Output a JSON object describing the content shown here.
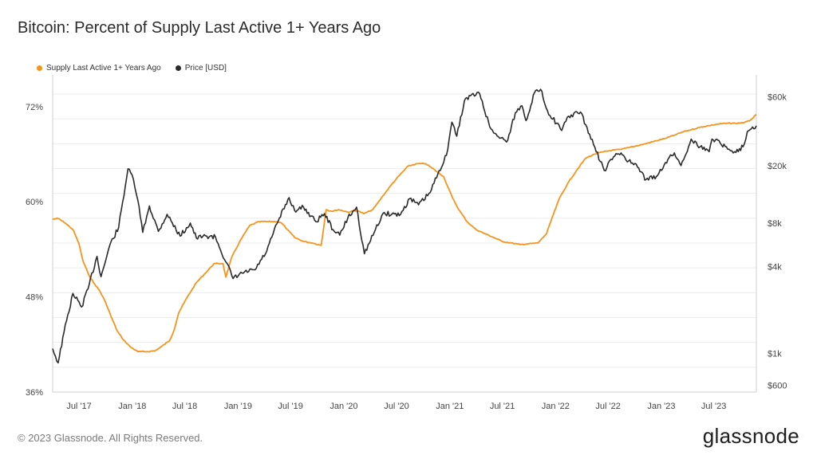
{
  "title": "Bitcoin: Percent of Supply Last Active 1+ Years Ago",
  "legend": [
    {
      "label": "Supply Last Active 1+ Years Ago",
      "color": "#f7931a"
    },
    {
      "label": "Price [USD]",
      "color": "#2a2a2a"
    }
  ],
  "footer": {
    "copyright": "© 2023 Glassnode. All Rights Reserved.",
    "logo": "glassnode"
  },
  "colors": {
    "supply": "#f7931a",
    "price": "#2a2a2a",
    "grid": "#ececec",
    "axis": "#cfcfcf"
  },
  "chart_data": {
    "type": "line",
    "title": "Bitcoin: Percent of Supply Last Active 1+ Years Ago",
    "x_tick_labels": [
      "Jul '17",
      "Jan '18",
      "Jul '18",
      "Jan '19",
      "Jul '19",
      "Jan '20",
      "Jul '20",
      "Jan '21",
      "Jul '21",
      "Jan '22",
      "Jul '22",
      "Jan '23",
      "Jul '23"
    ],
    "x_range": [
      "2017-04-01",
      "2023-11-25"
    ],
    "y_left": {
      "label": "",
      "ticks": [
        "36%",
        "48%",
        "60%",
        "72%"
      ],
      "range": [
        36,
        76
      ]
    },
    "y_right": {
      "label": "",
      "scale": "log",
      "ticks": [
        "$600",
        "$1k",
        "$4k",
        "$8k",
        "$20k",
        "$60k"
      ],
      "range": [
        540,
        85000
      ]
    },
    "grid": true,
    "legend_position": "top-left",
    "series": [
      {
        "name": "Supply Last Active 1+ Years Ago",
        "axis": "left",
        "points": [
          [
            "2017-04-01",
            57.8
          ],
          [
            "2017-04-20",
            57.9
          ],
          [
            "2017-05-15",
            57.3
          ],
          [
            "2017-06-10",
            56.5
          ],
          [
            "2017-06-30",
            54.8
          ],
          [
            "2017-07-15",
            52.5
          ],
          [
            "2017-08-01",
            51.0
          ],
          [
            "2017-08-20",
            49.8
          ],
          [
            "2017-09-10",
            48.8
          ],
          [
            "2017-10-01",
            47.3
          ],
          [
            "2017-10-20",
            45.5
          ],
          [
            "2017-11-10",
            43.7
          ],
          [
            "2017-12-01",
            42.6
          ],
          [
            "2017-12-25",
            41.7
          ],
          [
            "2018-01-20",
            41.1
          ],
          [
            "2018-02-20",
            41.1
          ],
          [
            "2018-03-20",
            41.2
          ],
          [
            "2018-04-10",
            41.7
          ],
          [
            "2018-05-10",
            42.5
          ],
          [
            "2018-05-25",
            43.8
          ],
          [
            "2018-06-10",
            46.0
          ],
          [
            "2018-07-10",
            48.0
          ],
          [
            "2018-08-10",
            49.8
          ],
          [
            "2018-09-10",
            51.0
          ],
          [
            "2018-10-10",
            52.2
          ],
          [
            "2018-11-10",
            52.2
          ],
          [
            "2018-11-20",
            50.5
          ],
          [
            "2018-12-10",
            53.0
          ],
          [
            "2019-01-10",
            55.2
          ],
          [
            "2019-02-10",
            57.0
          ],
          [
            "2019-03-15",
            57.5
          ],
          [
            "2019-04-15",
            57.5
          ],
          [
            "2019-05-15",
            57.5
          ],
          [
            "2019-06-01",
            57.3
          ],
          [
            "2019-06-20",
            56.5
          ],
          [
            "2019-07-15",
            55.5
          ],
          [
            "2019-08-15",
            55.0
          ],
          [
            "2019-09-15",
            54.8
          ],
          [
            "2019-10-15",
            54.5
          ],
          [
            "2019-11-01",
            59.0
          ],
          [
            "2019-11-20",
            58.8
          ],
          [
            "2019-12-15",
            59.0
          ],
          [
            "2020-01-15",
            58.7
          ],
          [
            "2020-02-15",
            58.9
          ],
          [
            "2020-03-10",
            58.5
          ],
          [
            "2020-04-10",
            59.0
          ],
          [
            "2020-05-10",
            60.5
          ],
          [
            "2020-06-10",
            62.0
          ],
          [
            "2020-07-10",
            63.3
          ],
          [
            "2020-08-10",
            64.5
          ],
          [
            "2020-09-10",
            64.8
          ],
          [
            "2020-10-10",
            64.8
          ],
          [
            "2020-11-10",
            64.0
          ],
          [
            "2020-12-10",
            63.2
          ],
          [
            "2021-01-10",
            60.5
          ],
          [
            "2021-02-01",
            59.0
          ],
          [
            "2021-03-01",
            57.5
          ],
          [
            "2021-04-01",
            56.5
          ],
          [
            "2021-05-01",
            56.0
          ],
          [
            "2021-06-01",
            55.5
          ],
          [
            "2021-07-01",
            55.0
          ],
          [
            "2021-08-01",
            54.8
          ],
          [
            "2021-09-01",
            54.6
          ],
          [
            "2021-10-01",
            54.7
          ],
          [
            "2021-11-01",
            54.8
          ],
          [
            "2021-12-01",
            56.0
          ],
          [
            "2021-12-20",
            58.0
          ],
          [
            "2022-01-15",
            60.5
          ],
          [
            "2022-02-15",
            62.5
          ],
          [
            "2022-03-15",
            64.0
          ],
          [
            "2022-04-15",
            65.5
          ],
          [
            "2022-05-15",
            66.0
          ],
          [
            "2022-06-15",
            66.3
          ],
          [
            "2022-07-15",
            66.5
          ],
          [
            "2022-08-15",
            66.6
          ],
          [
            "2022-09-15",
            66.9
          ],
          [
            "2022-10-15",
            67.1
          ],
          [
            "2022-11-15",
            67.4
          ],
          [
            "2022-12-15",
            67.7
          ],
          [
            "2023-01-15",
            68.0
          ],
          [
            "2023-02-15",
            68.4
          ],
          [
            "2023-03-15",
            68.8
          ],
          [
            "2023-04-15",
            69.1
          ],
          [
            "2023-05-15",
            69.4
          ],
          [
            "2023-06-15",
            69.6
          ],
          [
            "2023-07-15",
            69.8
          ],
          [
            "2023-08-15",
            69.9
          ],
          [
            "2023-09-15",
            69.9
          ],
          [
            "2023-10-15",
            70.0
          ],
          [
            "2023-11-01",
            70.2
          ],
          [
            "2023-11-25",
            71.0
          ]
        ]
      },
      {
        "name": "Price [USD]",
        "axis": "right",
        "points": [
          [
            "2017-04-01",
            1080
          ],
          [
            "2017-04-20",
            860
          ],
          [
            "2017-05-10",
            1400
          ],
          [
            "2017-06-10",
            2600
          ],
          [
            "2017-07-10",
            2100
          ],
          [
            "2017-08-01",
            2800
          ],
          [
            "2017-09-01",
            4700
          ],
          [
            "2017-09-15",
            3400
          ],
          [
            "2017-10-15",
            5600
          ],
          [
            "2017-11-15",
            7500
          ],
          [
            "2017-12-17",
            19000
          ],
          [
            "2018-01-05",
            16000
          ],
          [
            "2018-01-20",
            11500
          ],
          [
            "2018-02-06",
            6900
          ],
          [
            "2018-03-01",
            10500
          ],
          [
            "2018-04-01",
            7000
          ],
          [
            "2018-05-01",
            9200
          ],
          [
            "2018-06-15",
            6500
          ],
          [
            "2018-07-20",
            8000
          ],
          [
            "2018-08-10",
            6300
          ],
          [
            "2018-09-15",
            6500
          ],
          [
            "2018-10-15",
            6400
          ],
          [
            "2018-11-20",
            4300
          ],
          [
            "2018-12-15",
            3300
          ],
          [
            "2019-01-15",
            3600
          ],
          [
            "2019-03-01",
            3800
          ],
          [
            "2019-04-10",
            5100
          ],
          [
            "2019-05-15",
            7900
          ],
          [
            "2019-06-26",
            12000
          ],
          [
            "2019-07-15",
            9800
          ],
          [
            "2019-08-15",
            10300
          ],
          [
            "2019-09-26",
            8200
          ],
          [
            "2019-10-26",
            9300
          ],
          [
            "2019-11-25",
            7200
          ],
          [
            "2019-12-18",
            6600
          ],
          [
            "2020-01-15",
            8700
          ],
          [
            "2020-02-14",
            10300
          ],
          [
            "2020-03-12",
            4900
          ],
          [
            "2020-04-15",
            6900
          ],
          [
            "2020-05-15",
            9300
          ],
          [
            "2020-07-15",
            9200
          ],
          [
            "2020-08-15",
            11800
          ],
          [
            "2020-09-15",
            10700
          ],
          [
            "2020-10-25",
            13000
          ],
          [
            "2020-11-25",
            18500
          ],
          [
            "2020-12-20",
            23500
          ],
          [
            "2021-01-08",
            40000
          ],
          [
            "2021-01-25",
            32000
          ],
          [
            "2021-02-20",
            56000
          ],
          [
            "2021-03-13",
            61000
          ],
          [
            "2021-04-14",
            63000
          ],
          [
            "2021-05-19",
            37000
          ],
          [
            "2021-06-22",
            31000
          ],
          [
            "2021-07-20",
            30000
          ],
          [
            "2021-08-15",
            46500
          ],
          [
            "2021-09-07",
            52000
          ],
          [
            "2021-09-21",
            41000
          ],
          [
            "2021-10-20",
            64000
          ],
          [
            "2021-11-10",
            67500
          ],
          [
            "2021-12-04",
            48000
          ],
          [
            "2022-01-22",
            35000
          ],
          [
            "2022-02-15",
            44000
          ],
          [
            "2022-03-28",
            47000
          ],
          [
            "2022-05-12",
            28000
          ],
          [
            "2022-06-18",
            18500
          ],
          [
            "2022-07-20",
            23000
          ],
          [
            "2022-08-15",
            24500
          ],
          [
            "2022-09-10",
            21500
          ],
          [
            "2022-10-15",
            19200
          ],
          [
            "2022-11-09",
            16000
          ],
          [
            "2022-12-15",
            16800
          ],
          [
            "2023-01-15",
            21000
          ],
          [
            "2023-02-15",
            24500
          ],
          [
            "2023-03-10",
            20000
          ],
          [
            "2023-04-14",
            30500
          ],
          [
            "2023-05-15",
            27000
          ],
          [
            "2023-06-15",
            25000
          ],
          [
            "2023-06-25",
            30500
          ],
          [
            "2023-07-15",
            30000
          ],
          [
            "2023-08-18",
            26000
          ],
          [
            "2023-09-11",
            25000
          ],
          [
            "2023-10-10",
            27000
          ],
          [
            "2023-10-25",
            34500
          ],
          [
            "2023-11-12",
            37000
          ],
          [
            "2023-11-25",
            37800
          ]
        ]
      }
    ]
  }
}
